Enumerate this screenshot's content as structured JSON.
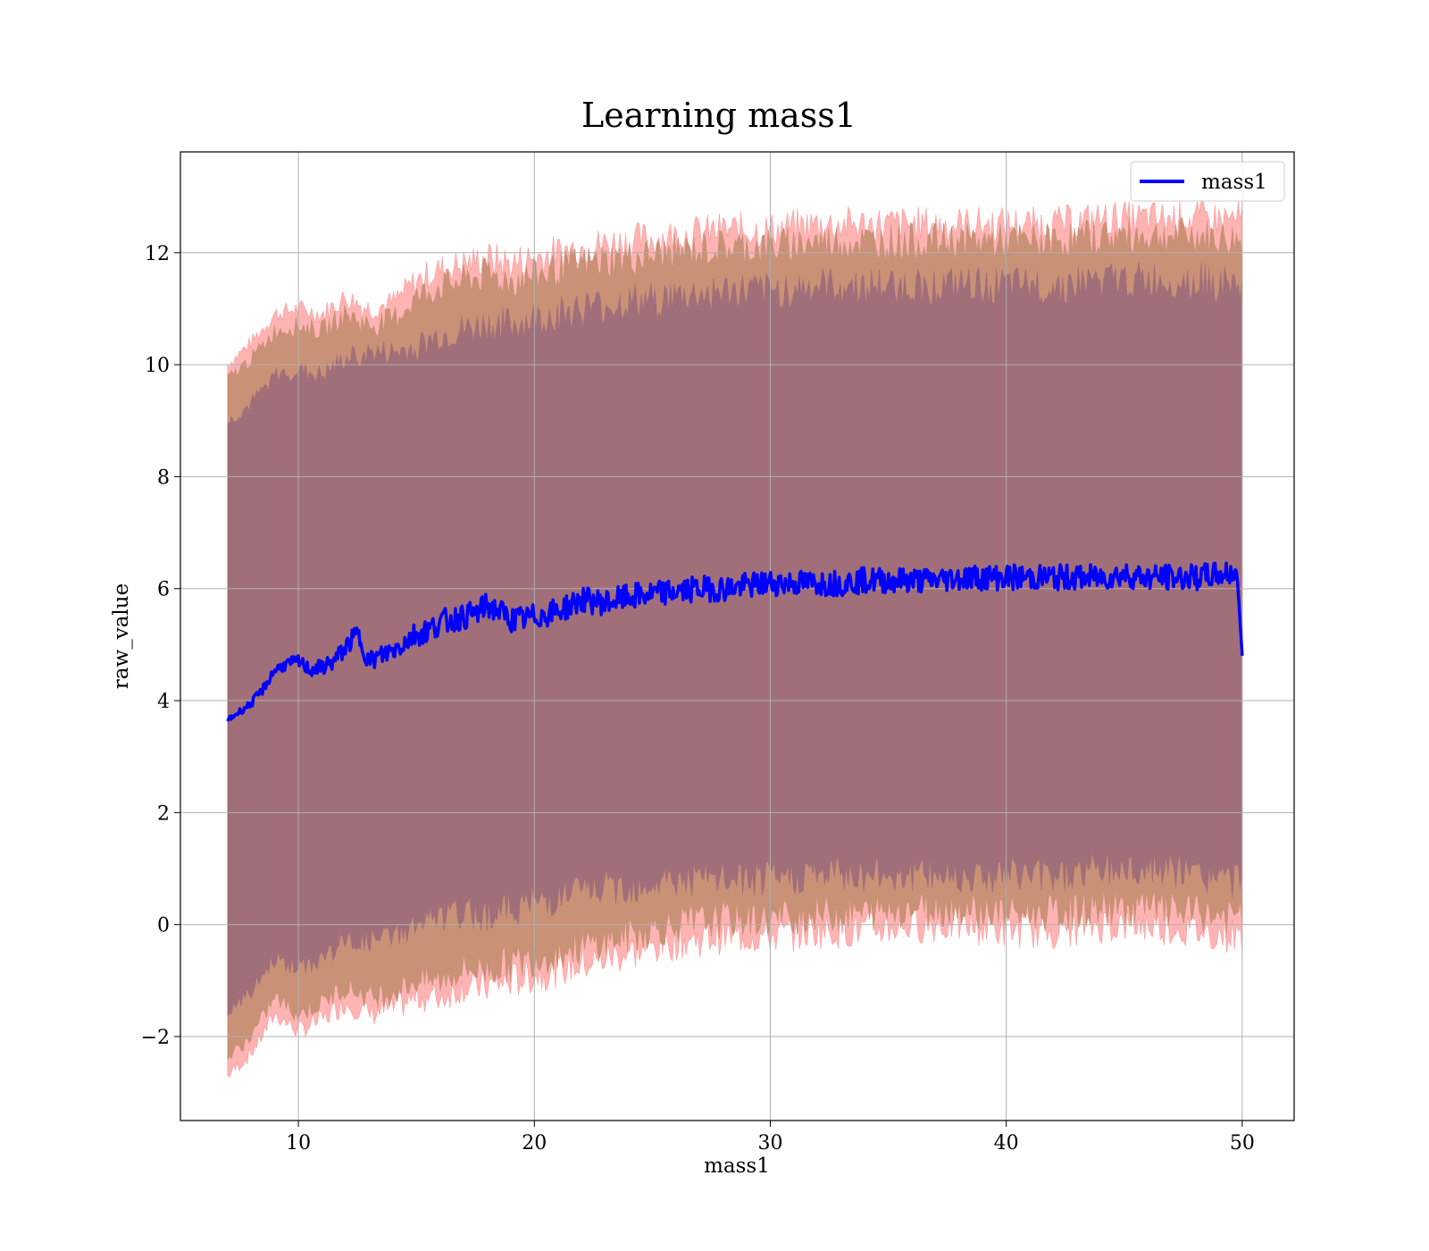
{
  "chart_data": {
    "type": "area",
    "title": "Learning mass1",
    "xlabel": "mass1",
    "ylabel": "raw_value",
    "xlim": [
      5,
      52.2
    ],
    "ylim": [
      -3.5,
      13.8
    ],
    "xticks": [
      10,
      20,
      30,
      40,
      50
    ],
    "yticks": [
      -2,
      0,
      2,
      4,
      6,
      8,
      10,
      12
    ],
    "ytick_labels": [
      "−2",
      "0",
      "2",
      "4",
      "6",
      "8",
      "10",
      "12"
    ],
    "grid": true,
    "legend": {
      "placement": "top-right",
      "entries": [
        "mass1"
      ]
    },
    "colors": {
      "line": "#0000ff",
      "band_outer": "#ff9999",
      "band_mid": "#c99176",
      "band_inner": "#a16f79"
    },
    "series": [
      {
        "name": "mass1",
        "kind": "line",
        "x": [
          7.0,
          7.5,
          8.0,
          8.5,
          9.0,
          9.5,
          10.0,
          10.5,
          11.0,
          11.5,
          12.0,
          12.5,
          13.0,
          13.5,
          14.0,
          14.5,
          15.0,
          15.5,
          16.0,
          16.5,
          17.0,
          17.5,
          18.0,
          18.5,
          19.0,
          19.5,
          20.0,
          21.0,
          22.0,
          23.0,
          24.0,
          25.0,
          26.0,
          27.0,
          28.0,
          29.0,
          30.0,
          31.0,
          32.0,
          33.0,
          34.0,
          35.0,
          36.0,
          37.0,
          38.0,
          39.0,
          40.0,
          41.0,
          42.0,
          43.0,
          44.0,
          45.0,
          46.0,
          47.0,
          48.0,
          49.0,
          49.8,
          50.0
        ],
        "y": [
          3.65,
          3.8,
          3.95,
          4.2,
          4.55,
          4.65,
          4.7,
          4.55,
          4.6,
          4.7,
          4.95,
          5.2,
          4.7,
          4.8,
          4.9,
          5.05,
          5.2,
          5.25,
          5.4,
          5.45,
          5.5,
          5.55,
          5.7,
          5.6,
          5.45,
          5.45,
          5.5,
          5.6,
          5.8,
          5.75,
          5.85,
          5.9,
          5.95,
          6.0,
          6.0,
          6.05,
          6.1,
          6.1,
          6.1,
          6.1,
          6.15,
          6.15,
          6.15,
          6.15,
          6.2,
          6.2,
          6.2,
          6.2,
          6.2,
          6.2,
          6.2,
          6.25,
          6.2,
          6.2,
          6.2,
          6.25,
          6.3,
          4.8
        ]
      },
      {
        "kind": "band",
        "x": [
          7.0,
          8.0,
          9.0,
          10.0,
          11.0,
          12.0,
          13.0,
          14.0,
          15.0,
          16.0,
          17.0,
          18.0,
          19.0,
          20.0,
          22.0,
          24.0,
          26.0,
          28.0,
          30.0,
          32.0,
          34.0,
          36.0,
          38.0,
          40.0,
          42.0,
          44.0,
          46.0,
          48.0,
          50.0
        ],
        "upper": [
          10.0,
          10.4,
          10.9,
          11.0,
          10.9,
          11.2,
          11.0,
          11.1,
          11.5,
          11.7,
          11.8,
          11.9,
          11.8,
          11.9,
          12.1,
          12.2,
          12.3,
          12.4,
          12.4,
          12.5,
          12.5,
          12.5,
          12.5,
          12.5,
          12.5,
          12.6,
          12.6,
          12.6,
          12.6
        ],
        "lower": [
          -2.7,
          -2.3,
          -1.6,
          -1.9,
          -1.7,
          -1.4,
          -1.6,
          -1.5,
          -1.3,
          -1.3,
          -1.1,
          -1.1,
          -1.0,
          -0.9,
          -0.7,
          -0.5,
          -0.3,
          -0.2,
          -0.2,
          -0.1,
          -0.1,
          0.0,
          0.0,
          -0.1,
          -0.1,
          0.0,
          0.0,
          -0.1,
          -0.2
        ]
      },
      {
        "kind": "band",
        "x": [
          7.0,
          8.0,
          9.0,
          10.0,
          11.0,
          12.0,
          13.0,
          14.0,
          15.0,
          16.0,
          17.0,
          18.0,
          19.0,
          20.0,
          22.0,
          24.0,
          26.0,
          28.0,
          30.0,
          32.0,
          34.0,
          36.0,
          38.0,
          40.0,
          42.0,
          44.0,
          46.0,
          48.0,
          50.0
        ],
        "upper": [
          9.75,
          10.1,
          10.6,
          10.7,
          10.6,
          10.9,
          10.7,
          10.8,
          11.2,
          11.4,
          11.5,
          11.6,
          11.5,
          11.6,
          11.8,
          11.9,
          12.0,
          12.1,
          12.1,
          12.2,
          12.2,
          12.2,
          12.2,
          12.2,
          12.2,
          12.3,
          12.3,
          12.3,
          12.2
        ],
        "lower": [
          -2.4,
          -2.0,
          -1.3,
          -1.6,
          -1.4,
          -1.1,
          -1.3,
          -1.2,
          -1.0,
          -1.0,
          -0.8,
          -0.8,
          -0.7,
          -0.6,
          -0.4,
          -0.2,
          0.0,
          0.1,
          0.1,
          0.2,
          0.2,
          0.3,
          0.3,
          0.2,
          0.2,
          0.3,
          0.3,
          0.2,
          0.1
        ]
      },
      {
        "kind": "band",
        "x": [
          7.0,
          8.0,
          9.0,
          10.0,
          11.0,
          12.0,
          13.0,
          14.0,
          15.0,
          16.0,
          17.0,
          18.0,
          19.0,
          20.0,
          22.0,
          24.0,
          26.0,
          28.0,
          30.0,
          32.0,
          34.0,
          36.0,
          38.0,
          40.0,
          42.0,
          44.0,
          46.0,
          48.0,
          50.0
        ],
        "upper": [
          8.95,
          9.3,
          9.8,
          9.9,
          9.8,
          10.1,
          10.2,
          10.2,
          10.3,
          10.5,
          10.6,
          10.7,
          10.7,
          10.8,
          11.0,
          11.1,
          11.2,
          11.3,
          11.3,
          11.4,
          11.4,
          11.4,
          11.4,
          11.4,
          11.4,
          11.5,
          11.5,
          11.5,
          11.4
        ],
        "lower": [
          -1.6,
          -1.2,
          -0.6,
          -0.8,
          -0.6,
          -0.3,
          -0.3,
          -0.2,
          0.0,
          0.1,
          0.2,
          0.2,
          0.3,
          0.4,
          0.6,
          0.7,
          0.8,
          0.8,
          0.8,
          0.9,
          0.9,
          0.9,
          0.9,
          0.9,
          0.9,
          1.0,
          1.0,
          0.9,
          0.8
        ]
      }
    ]
  }
}
